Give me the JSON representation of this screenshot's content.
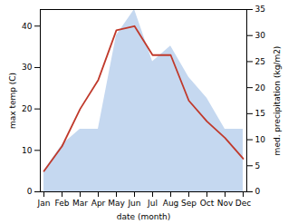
{
  "chart_data": {
    "type": "line",
    "categories": [
      "Jan",
      "Feb",
      "Mar",
      "Apr",
      "May",
      "Jun",
      "Jul",
      "Aug",
      "Sep",
      "Oct",
      "Nov",
      "Dec"
    ],
    "series": [
      {
        "type": "area",
        "axis": "y2",
        "color": "#c5d8f0",
        "values": [
          4,
          9,
          12,
          12,
          30,
          35,
          25,
          28,
          22,
          18,
          12,
          12
        ]
      },
      {
        "type": "line",
        "color": "#c0392b",
        "values": [
          5,
          11,
          20,
          27,
          39,
          40,
          33,
          33,
          22,
          17,
          13,
          8
        ]
      }
    ],
    "xlabel": "date (month)",
    "ylabel": "max temp (C)",
    "y2label": "med. precipitation (kg/m2)",
    "ylim": [
      0,
      44
    ],
    "yticks": [
      0,
      10,
      20,
      30,
      40
    ],
    "y2lim": [
      0,
      35
    ],
    "y2ticks": [
      0,
      5,
      10,
      15,
      20,
      25,
      30,
      35
    ]
  }
}
